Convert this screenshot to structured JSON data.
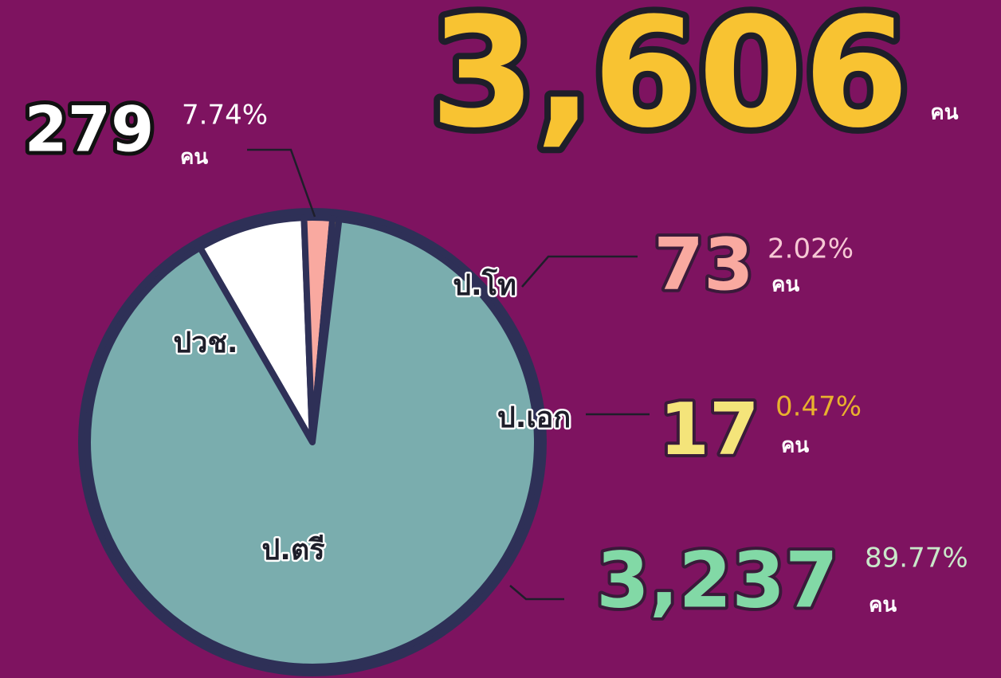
{
  "chart_data": {
    "type": "pie",
    "total_label": "3,606",
    "unit": "คน",
    "categories": [
      "ปวช.",
      "ป.โท",
      "ป.เอก",
      "ป.ตรี"
    ],
    "values": [
      279,
      73,
      17,
      3237
    ],
    "value_labels": [
      "279",
      "73",
      "17",
      "3,237"
    ],
    "percent_labels": [
      "7.74%",
      "2.02%",
      "0.47%",
      "89.77%"
    ],
    "colors": [
      "#ffffff",
      "#f9a9a0",
      "#e8a932",
      "#7aadae"
    ]
  }
}
